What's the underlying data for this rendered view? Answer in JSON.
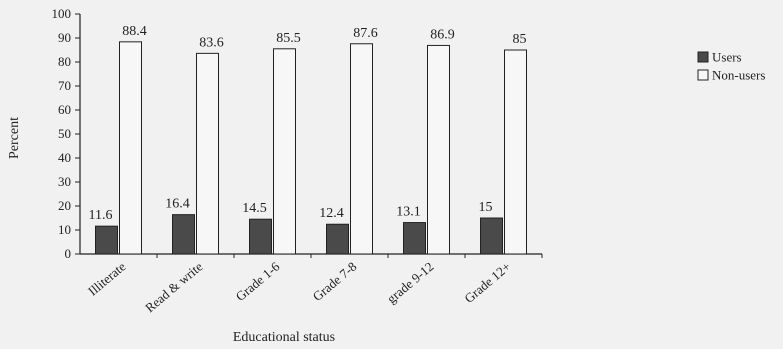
{
  "chart_data": {
    "type": "bar",
    "categories": [
      "Illiterate",
      "Read & write",
      "Grade 1-6",
      "Grade 7-8",
      "grade 9-12",
      "Grade 12+"
    ],
    "series": [
      {
        "name": "Users",
        "values": [
          11.6,
          16.4,
          14.5,
          12.4,
          13.1,
          15
        ]
      },
      {
        "name": "Non-users",
        "values": [
          88.4,
          83.6,
          85.5,
          87.6,
          86.9,
          85
        ]
      }
    ],
    "xlabel": "Educational status",
    "ylabel": "Percent",
    "ylim": [
      0,
      100
    ],
    "yticks": [
      0,
      10,
      20,
      30,
      40,
      50,
      60,
      70,
      80,
      90,
      100
    ],
    "grid": false,
    "legend_position": "right",
    "colors": {
      "Users": "#4a4a4a",
      "Non-users": "#f7f7f7",
      "outline": "#222222"
    }
  }
}
